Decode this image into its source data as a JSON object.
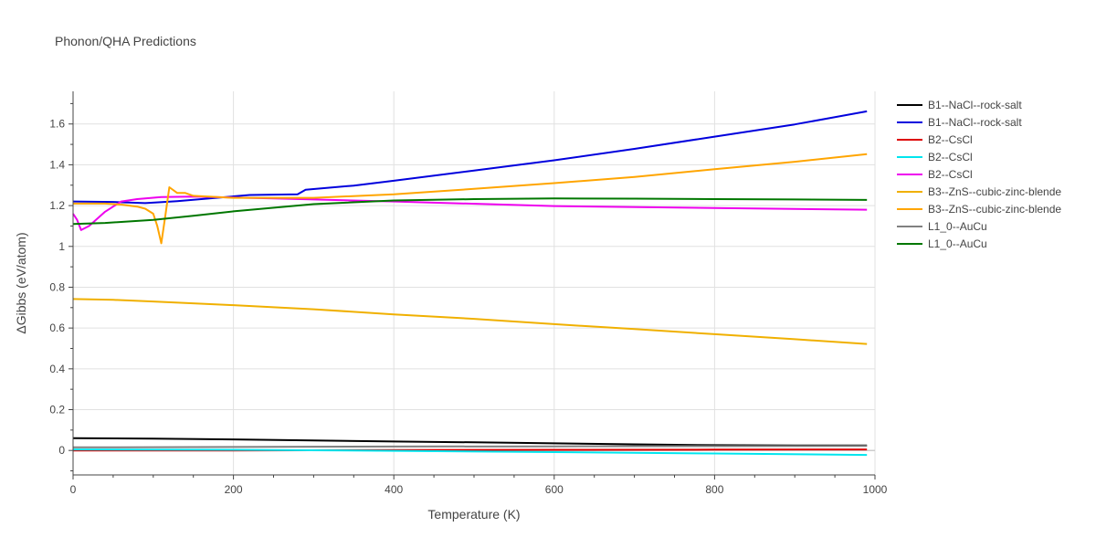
{
  "chart_data": {
    "type": "line",
    "title": "Phonon/QHA Predictions",
    "xlabel": "Temperature (K)",
    "ylabel": "ΔGibbs (eV/atom)",
    "xlim": [
      0,
      1000
    ],
    "ylim": [
      -0.12,
      1.76
    ],
    "xticks": [
      0,
      200,
      400,
      600,
      800,
      1000
    ],
    "yticks": [
      0,
      0.2,
      0.4,
      0.6,
      0.8,
      1,
      1.2,
      1.4,
      1.6
    ],
    "xtick_labels": [
      "0",
      "200",
      "400",
      "600",
      "800",
      "1000"
    ],
    "ytick_labels": [
      "0",
      "0.2",
      "0.4",
      "0.6",
      "0.8",
      "1",
      "1.2",
      "1.4",
      "1.6"
    ],
    "grid": true,
    "legend_position": "right",
    "series": [
      {
        "name": "B1--NaCl--rock-salt",
        "color": "#000000",
        "points": [
          [
            0,
            0.06
          ],
          [
            100,
            0.058
          ],
          [
            200,
            0.054
          ],
          [
            300,
            0.049
          ],
          [
            400,
            0.044
          ],
          [
            500,
            0.04
          ],
          [
            600,
            0.035
          ],
          [
            700,
            0.03
          ],
          [
            800,
            0.026
          ],
          [
            900,
            0.024
          ],
          [
            990,
            0.024
          ]
        ]
      },
      {
        "name": "B1--NaCl--rock-salt",
        "color": "#0000dd",
        "points": [
          [
            0,
            1.22
          ],
          [
            50,
            1.218
          ],
          [
            90,
            1.212
          ],
          [
            130,
            1.222
          ],
          [
            170,
            1.235
          ],
          [
            220,
            1.252
          ],
          [
            280,
            1.255
          ],
          [
            290,
            1.278
          ],
          [
            350,
            1.298
          ],
          [
            400,
            1.322
          ],
          [
            500,
            1.372
          ],
          [
            600,
            1.422
          ],
          [
            700,
            1.478
          ],
          [
            800,
            1.538
          ],
          [
            900,
            1.598
          ],
          [
            990,
            1.662
          ]
        ]
      },
      {
        "name": "B2--CsCl",
        "color": "#dd0000",
        "points": [
          [
            0,
            0.0
          ],
          [
            200,
            0.0
          ],
          [
            400,
            0.002
          ],
          [
            600,
            0.003
          ],
          [
            800,
            0.004
          ],
          [
            990,
            0.005
          ]
        ]
      },
      {
        "name": "B2--CsCl",
        "color": "#00e5ee",
        "points": [
          [
            0,
            0.005
          ],
          [
            200,
            0.003
          ],
          [
            400,
            -0.002
          ],
          [
            600,
            -0.008
          ],
          [
            800,
            -0.015
          ],
          [
            990,
            -0.022
          ]
        ]
      },
      {
        "name": "B2--CsCl",
        "color": "#ee00ee",
        "points": [
          [
            0,
            1.16
          ],
          [
            5,
            1.13
          ],
          [
            10,
            1.08
          ],
          [
            20,
            1.1
          ],
          [
            40,
            1.17
          ],
          [
            60,
            1.22
          ],
          [
            80,
            1.232
          ],
          [
            110,
            1.242
          ],
          [
            150,
            1.244
          ],
          [
            250,
            1.235
          ],
          [
            400,
            1.22
          ],
          [
            600,
            1.198
          ],
          [
            800,
            1.188
          ],
          [
            990,
            1.18
          ]
        ]
      },
      {
        "name": "B3--ZnS--cubic-zinc-blende",
        "color": "#f0b000",
        "points": [
          [
            0,
            0.742
          ],
          [
            50,
            0.738
          ],
          [
            100,
            0.73
          ],
          [
            200,
            0.712
          ],
          [
            300,
            0.692
          ],
          [
            400,
            0.667
          ],
          [
            500,
            0.645
          ],
          [
            600,
            0.619
          ],
          [
            700,
            0.595
          ],
          [
            800,
            0.57
          ],
          [
            900,
            0.545
          ],
          [
            990,
            0.522
          ]
        ]
      },
      {
        "name": "B3--ZnS--cubic-zinc-blende",
        "color": "#ffa500",
        "points": [
          [
            0,
            1.21
          ],
          [
            40,
            1.21
          ],
          [
            60,
            1.205
          ],
          [
            80,
            1.195
          ],
          [
            90,
            1.185
          ],
          [
            100,
            1.16
          ],
          [
            105,
            1.1
          ],
          [
            110,
            1.015
          ],
          [
            115,
            1.15
          ],
          [
            120,
            1.29
          ],
          [
            130,
            1.262
          ],
          [
            140,
            1.262
          ],
          [
            150,
            1.248
          ],
          [
            200,
            1.238
          ],
          [
            300,
            1.238
          ],
          [
            400,
            1.255
          ],
          [
            500,
            1.282
          ],
          [
            600,
            1.31
          ],
          [
            700,
            1.34
          ],
          [
            800,
            1.378
          ],
          [
            900,
            1.415
          ],
          [
            990,
            1.452
          ]
        ]
      },
      {
        "name": "L1_0--AuCu",
        "color": "#808080",
        "points": [
          [
            0,
            0.015
          ],
          [
            200,
            0.017
          ],
          [
            400,
            0.019
          ],
          [
            600,
            0.02
          ],
          [
            800,
            0.021
          ],
          [
            990,
            0.022
          ]
        ]
      },
      {
        "name": "L1_0--AuCu",
        "color": "#007700",
        "points": [
          [
            0,
            1.11
          ],
          [
            40,
            1.115
          ],
          [
            100,
            1.13
          ],
          [
            150,
            1.15
          ],
          [
            200,
            1.172
          ],
          [
            300,
            1.207
          ],
          [
            400,
            1.225
          ],
          [
            500,
            1.232
          ],
          [
            600,
            1.235
          ],
          [
            700,
            1.234
          ],
          [
            800,
            1.232
          ],
          [
            900,
            1.23
          ],
          [
            990,
            1.228
          ]
        ]
      }
    ]
  }
}
